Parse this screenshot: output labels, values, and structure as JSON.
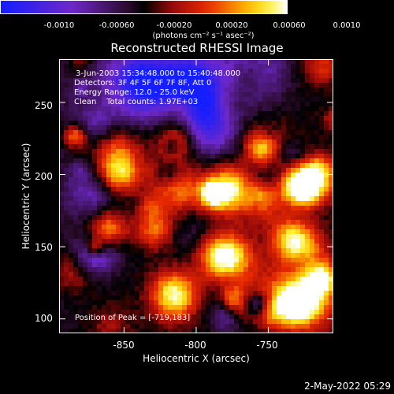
{
  "colorbar": {
    "ticks": [
      "-0.0010",
      "-0.00060",
      "-0.00020",
      "0.00020",
      "0.00060",
      "0.0010"
    ],
    "units": "(photons cm⁻² s⁻¹ asec⁻²)",
    "min": -0.001,
    "max": 0.001
  },
  "chart_data": {
    "type": "heatmap",
    "title": "Reconstructed RHESSI Image",
    "xlabel": "Heliocentric X (arcsec)",
    "ylabel": "Heliocentric Y (arcsec)",
    "xlim": [
      -895,
      -705
    ],
    "ylim": [
      90,
      280
    ],
    "x_ticks": [
      "-850",
      "-800",
      "-750"
    ],
    "x_tick_values": [
      -850,
      -800,
      -750
    ],
    "y_ticks": [
      "100",
      "150",
      "200",
      "250"
    ],
    "y_tick_values": [
      100,
      150,
      200,
      250
    ],
    "peak": {
      "x": -719,
      "y": 183
    }
  },
  "annotations": {
    "time_range": "3-Jun-2003 15:34:48.000 to 15:40:48.000",
    "detectors": "Detectors: 3F 4F 5F 6F 7F 8F, Att 0",
    "energy": "Energy Range: 12.0 - 25.0 keV",
    "clean": "Clean    Total counts: 1.97E+03",
    "peak_position": "Position of Peak = [-719,183]"
  },
  "footer": {
    "timestamp": "2-May-2022 05:29"
  }
}
